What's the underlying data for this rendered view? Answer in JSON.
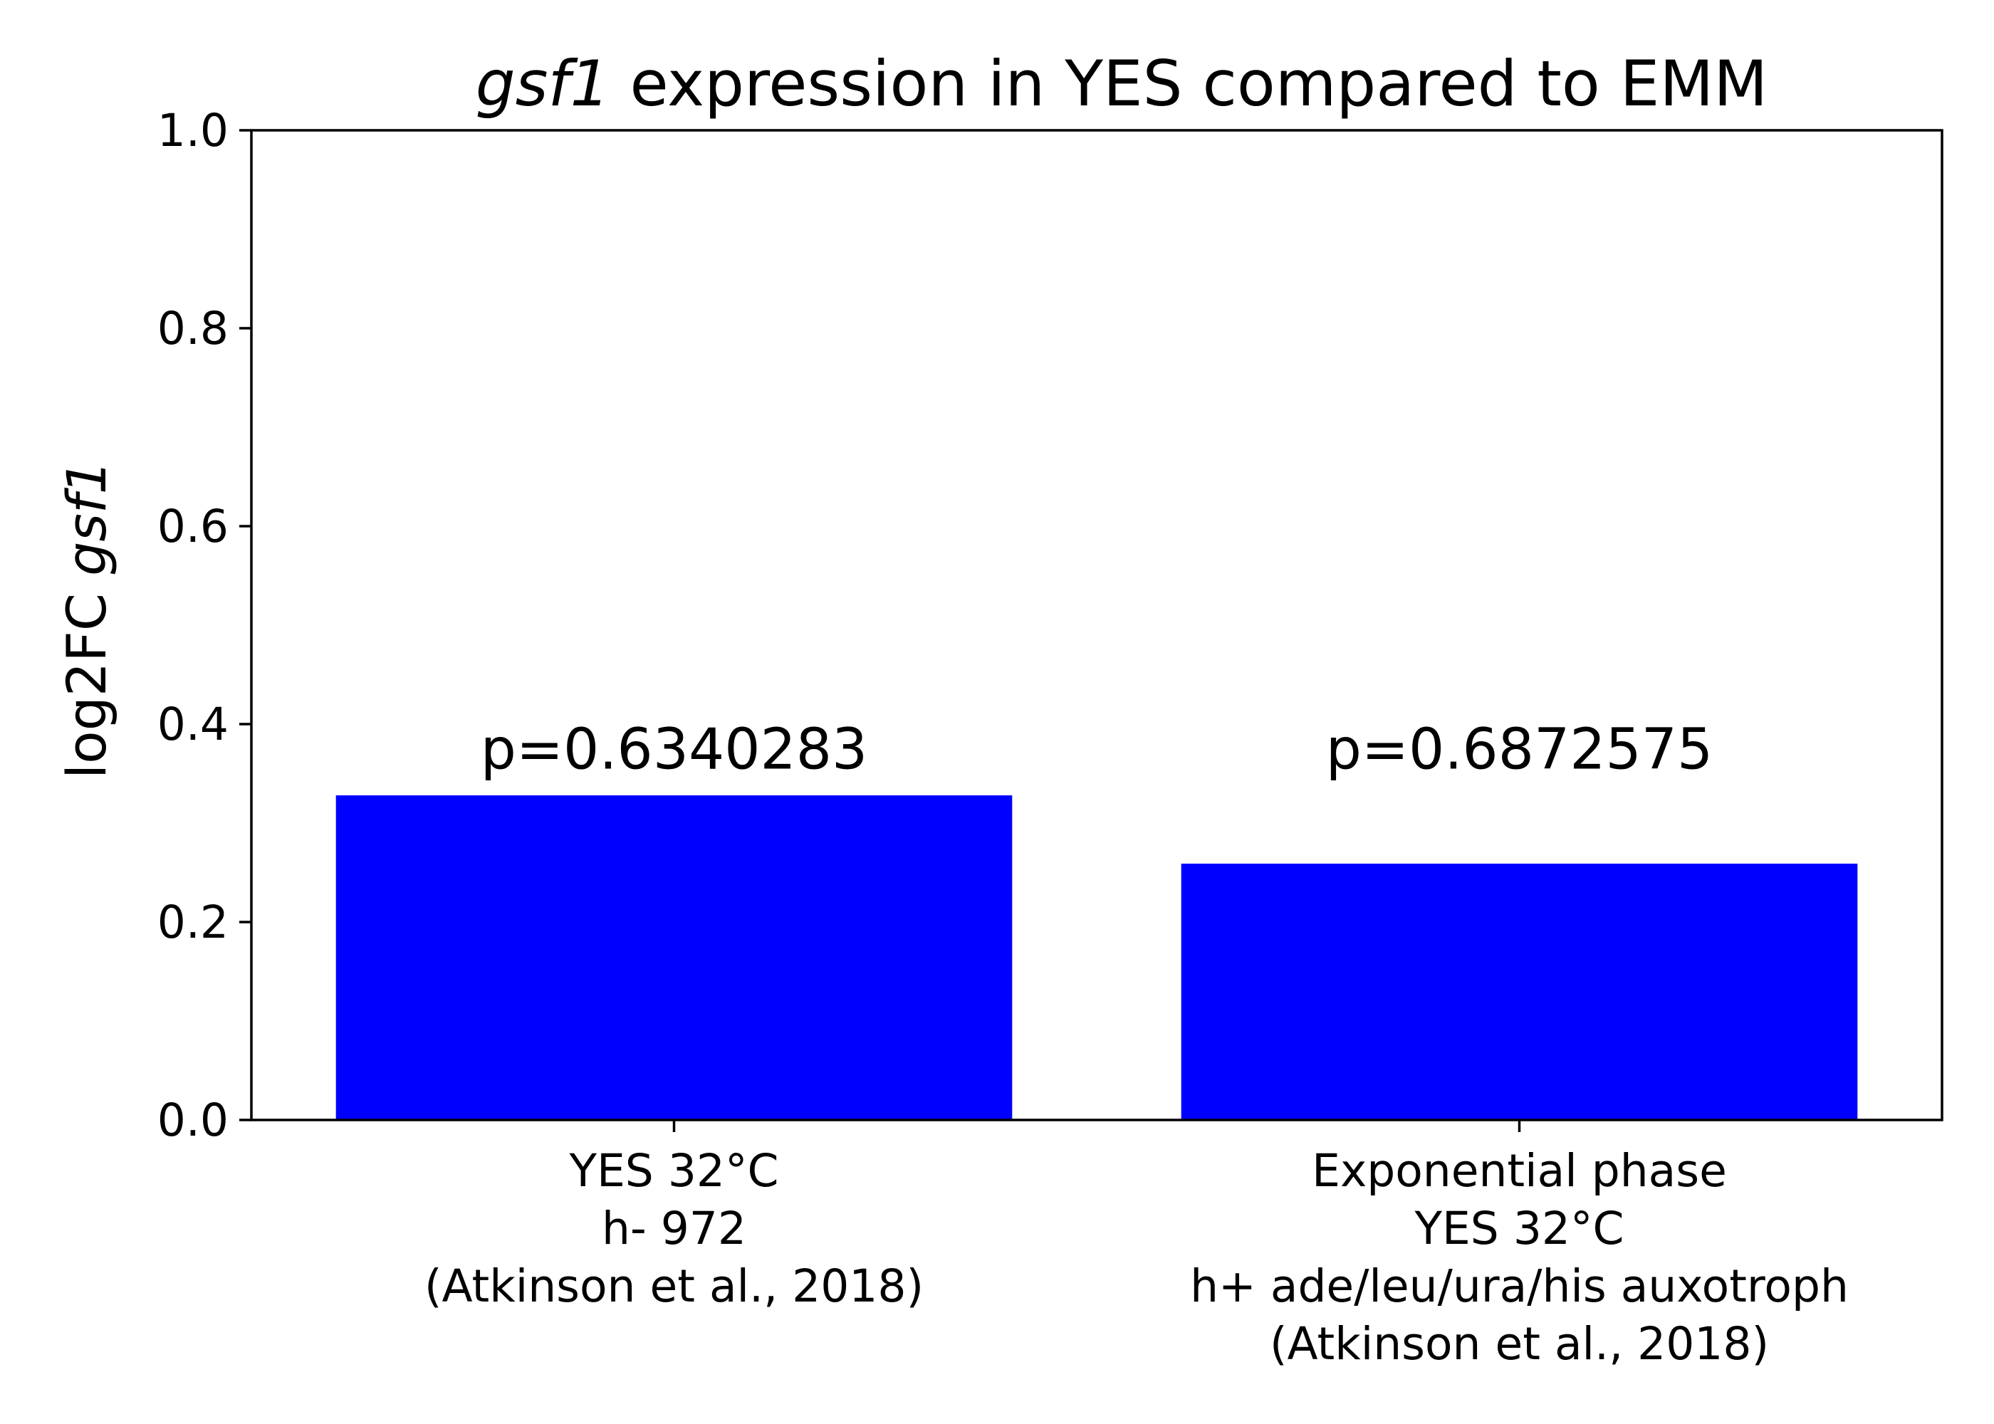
{
  "chart_data": {
    "type": "bar",
    "title": {
      "italic": "gsf1",
      "rest": " expression in YES compared to EMM"
    },
    "ylabel": {
      "plain": "log2FC ",
      "italic": "gsf1"
    },
    "xlabel": "",
    "ylim": [
      0.0,
      1.0
    ],
    "yticks": [
      0.0,
      0.2,
      0.4,
      0.6,
      0.8,
      1.0
    ],
    "ytick_labels": [
      "0.0",
      "0.2",
      "0.4",
      "0.6",
      "0.8",
      "1.0"
    ],
    "categories": [
      [
        "YES 32°C",
        "h- 972",
        "(Atkinson et al., 2018)"
      ],
      [
        "Exponential phase",
        "YES 32°C",
        "h+ ade/leu/ura/his auxotroph",
        "(Atkinson et al., 2018)"
      ]
    ],
    "values": [
      0.328,
      0.259
    ],
    "annotations": [
      "p=0.6340283",
      "p=0.6872575"
    ],
    "bar_color": "#0000ff",
    "grid": false
  }
}
